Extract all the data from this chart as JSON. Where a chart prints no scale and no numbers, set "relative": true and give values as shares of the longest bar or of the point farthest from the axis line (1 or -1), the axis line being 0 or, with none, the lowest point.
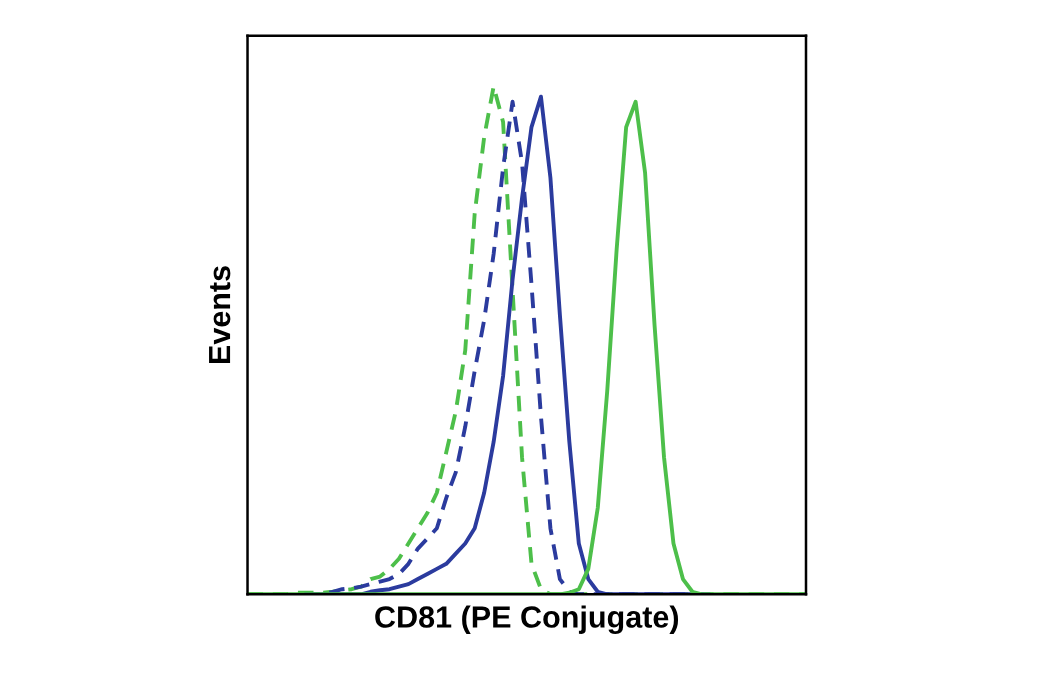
{
  "chart_data": {
    "type": "line",
    "xlabel": "CD81 (PE Conjugate)",
    "ylabel": "Events",
    "relative": true,
    "tick_labels": false,
    "legend": false,
    "marker": "none",
    "categories": [
      null,
      null,
      null,
      null,
      null,
      null,
      null,
      null,
      null,
      null,
      null,
      null,
      null,
      null,
      null,
      null,
      null,
      null,
      null,
      null,
      null,
      null,
      null,
      null,
      null,
      null,
      null,
      null,
      null,
      null,
      null,
      null,
      null,
      null,
      null,
      null,
      null,
      null,
      null,
      null,
      null,
      null,
      null,
      null,
      null,
      null,
      null,
      null,
      null,
      null,
      null,
      null,
      null,
      null,
      null,
      null,
      null,
      null,
      null,
      null
    ],
    "series": [
      {
        "color": "#4dbf4a",
        "line_style": "dashed",
        "values": [
          0,
          0,
          0,
          0,
          0,
          0.003,
          0.003,
          0.003,
          0.003,
          0.005,
          0.008,
          0.01,
          0.015,
          0.03,
          0.035,
          0.05,
          0.07,
          0.1,
          0.13,
          0.16,
          0.2,
          0.28,
          0.36,
          0.48,
          0.75,
          0.9,
          1.0,
          0.93,
          0.6,
          0.27,
          0.06,
          0.01,
          0,
          0,
          0,
          0,
          0,
          0,
          0,
          0,
          0,
          0,
          0,
          0,
          0,
          0,
          0,
          0,
          0,
          0,
          0,
          0,
          0,
          0,
          0,
          0,
          0,
          0,
          0,
          0
        ]
      },
      {
        "color": "#2b3b9e",
        "line_style": "dashed",
        "values": [
          null,
          null,
          null,
          null,
          null,
          null,
          0,
          0,
          0,
          0.005,
          0.01,
          0.012,
          0.015,
          0.02,
          0.025,
          0.03,
          0.04,
          0.06,
          0.09,
          0.11,
          0.13,
          0.19,
          0.24,
          0.33,
          0.44,
          0.54,
          0.67,
          0.84,
          0.97,
          0.85,
          0.61,
          0.35,
          0.13,
          0.03,
          0.005,
          0,
          0,
          0,
          0,
          0,
          0,
          0,
          0,
          0,
          0,
          0,
          0,
          0,
          0,
          0,
          null,
          null,
          null,
          null,
          null,
          null,
          null,
          null,
          null,
          null
        ]
      },
      {
        "color": "#2b3b9e",
        "line_style": "solid",
        "values": [
          null,
          null,
          null,
          null,
          null,
          null,
          null,
          0,
          0,
          0,
          0,
          0,
          0,
          0.005,
          0.008,
          0.01,
          0.015,
          0.02,
          0.03,
          0.04,
          0.05,
          0.06,
          0.08,
          0.1,
          0.13,
          0.2,
          0.3,
          0.43,
          0.62,
          0.78,
          0.92,
          0.98,
          0.82,
          0.55,
          0.3,
          0.1,
          0.03,
          0.005,
          0,
          0,
          0,
          0,
          0,
          0,
          0,
          0,
          0,
          0,
          0,
          null,
          null,
          null,
          null,
          null,
          null,
          null,
          null,
          null,
          null,
          null
        ]
      },
      {
        "color": "#4dbf4a",
        "line_style": "solid",
        "values": [
          0,
          0,
          0,
          0,
          0,
          0,
          0,
          0,
          0,
          0,
          0,
          0,
          0,
          0,
          0,
          0,
          0,
          0,
          0,
          0,
          0,
          0,
          0,
          0,
          0,
          0,
          0,
          0,
          0,
          0,
          0,
          0,
          0,
          0,
          0.003,
          0.01,
          0.05,
          0.17,
          0.4,
          0.68,
          0.92,
          0.97,
          0.83,
          0.53,
          0.27,
          0.1,
          0.03,
          0.005,
          0,
          0,
          0,
          0,
          0,
          0,
          0,
          0,
          0,
          0,
          0,
          0
        ]
      }
    ]
  }
}
